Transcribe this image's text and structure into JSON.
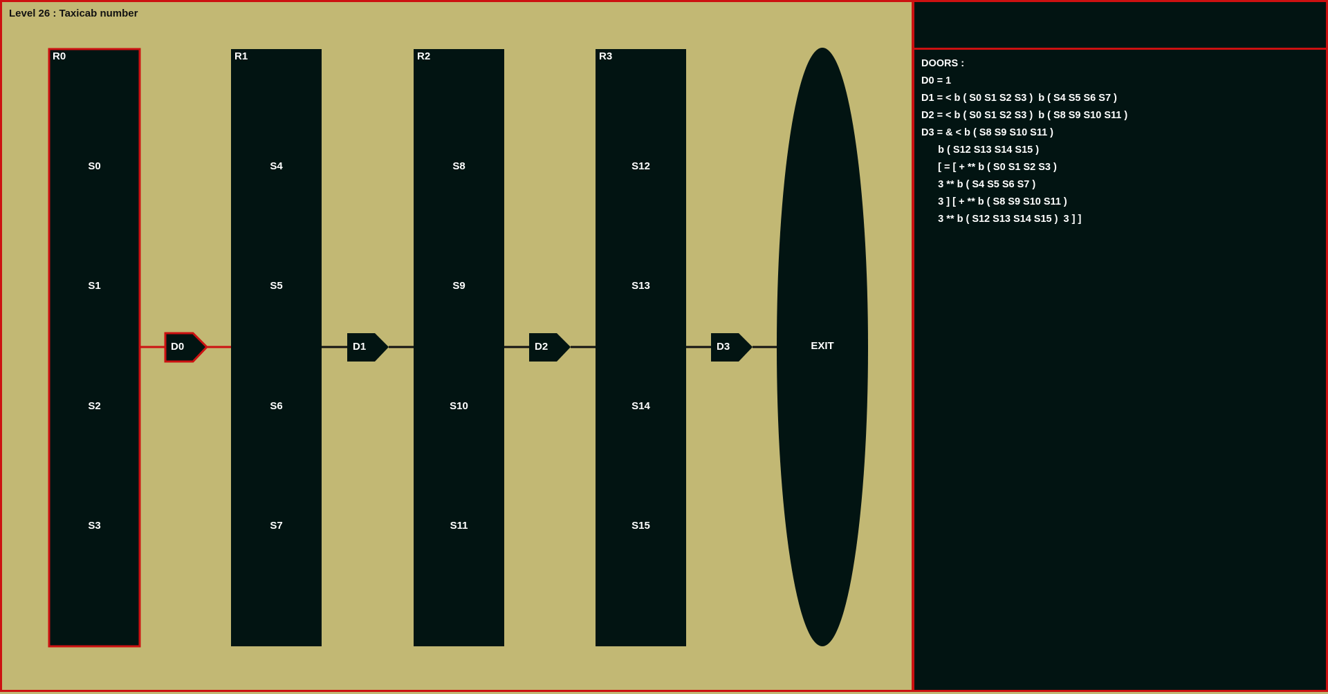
{
  "level_title": "Level 26 : Taxicab number",
  "colors": {
    "background": "#c2b874",
    "dark": "#021412",
    "highlight": "#cc1111",
    "text": "#ffffff"
  },
  "rooms": [
    {
      "label": "R0",
      "selected": true,
      "switches": [
        "S0",
        "S1",
        "S2",
        "S3"
      ]
    },
    {
      "label": "R1",
      "selected": false,
      "switches": [
        "S4",
        "S5",
        "S6",
        "S7"
      ]
    },
    {
      "label": "R2",
      "selected": false,
      "switches": [
        "S8",
        "S9",
        "S10",
        "S11"
      ]
    },
    {
      "label": "R3",
      "selected": false,
      "switches": [
        "S12",
        "S13",
        "S14",
        "S15"
      ]
    }
  ],
  "doors": [
    {
      "label": "D0",
      "selected": true
    },
    {
      "label": "D1",
      "selected": false
    },
    {
      "label": "D2",
      "selected": false
    },
    {
      "label": "D3",
      "selected": false
    }
  ],
  "exit_label": "EXIT",
  "doors_panel": {
    "lines": [
      "DOORS :",
      "D0 = 1",
      "D1 = < b ( S0 S1 S2 S3 )  b ( S4 S5 S6 S7 )",
      "D2 = < b ( S0 S1 S2 S3 )  b ( S8 S9 S10 S11 )",
      "D3 = & < b ( S8 S9 S10 S11 )",
      "      b ( S12 S13 S14 S15 )",
      "      [ = [ + ** b ( S0 S1 S2 S3 )",
      "      3 ** b ( S4 S5 S6 S7 )",
      "      3 ] [ + ** b ( S8 S9 S10 S11 )",
      "      3 ** b ( S12 S13 S14 S15 )  3 ] ]"
    ]
  }
}
